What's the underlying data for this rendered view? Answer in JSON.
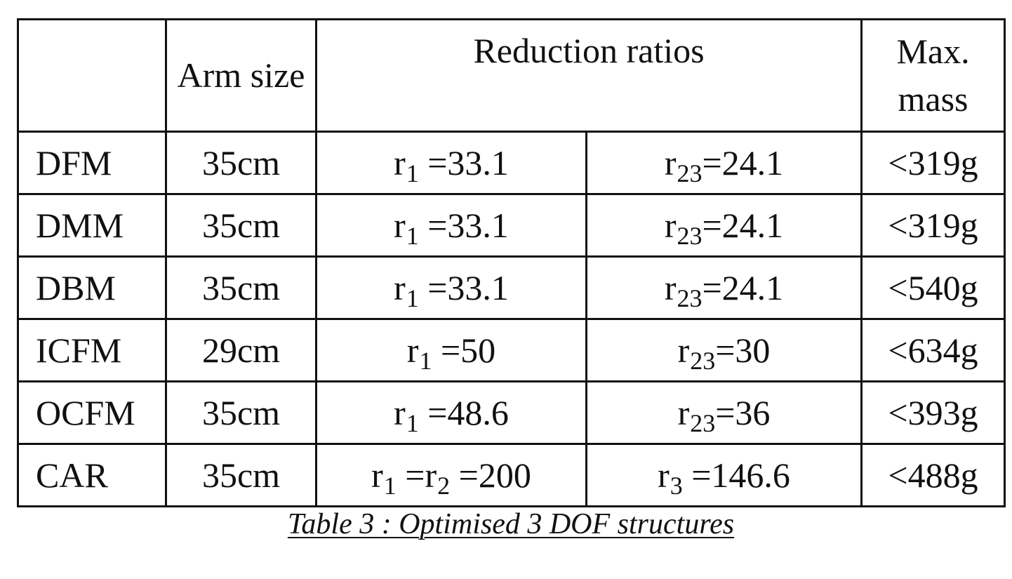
{
  "table": {
    "headers": {
      "name": "",
      "arm_size": "Arm size",
      "reduction_ratios": "Reduction ratios",
      "max_mass": "Max. mass"
    },
    "rows": [
      {
        "name": "DFM",
        "arm_size": "35cm",
        "ratio_a": {
          "symbol": "r",
          "sub": "1",
          "value": " =33.1"
        },
        "ratio_b": {
          "symbol": "r",
          "sub": "23",
          "value": "=24.1"
        },
        "max_mass": "<319g"
      },
      {
        "name": "DMM",
        "arm_size": "35cm",
        "ratio_a": {
          "symbol": "r",
          "sub": "1",
          "value": " =33.1"
        },
        "ratio_b": {
          "symbol": "r",
          "sub": "23",
          "value": "=24.1"
        },
        "max_mass": "<319g"
      },
      {
        "name": "DBM",
        "arm_size": "35cm",
        "ratio_a": {
          "symbol": "r",
          "sub": "1",
          "value": " =33.1"
        },
        "ratio_b": {
          "symbol": "r",
          "sub": "23",
          "value": "=24.1"
        },
        "max_mass": "<540g"
      },
      {
        "name": "ICFM",
        "arm_size": "29cm",
        "ratio_a": {
          "symbol": "r",
          "sub": "1",
          "value": " =50"
        },
        "ratio_b": {
          "symbol": "r",
          "sub": "23",
          "value": "=30"
        },
        "max_mass": "<634g"
      },
      {
        "name": "OCFM",
        "arm_size": "35cm",
        "ratio_a": {
          "symbol": "r",
          "sub": "1",
          "value": " =48.6"
        },
        "ratio_b": {
          "symbol": "r",
          "sub": "23",
          "value": "=36"
        },
        "max_mass": "<393g"
      },
      {
        "name": "CAR",
        "arm_size": "35cm",
        "ratio_a": {
          "symbol": "r",
          "sub": "1",
          "value": " =r",
          "sub2": "2",
          "value2": " =200"
        },
        "ratio_b": {
          "symbol": "r",
          "sub": "3",
          "value": " =146.6"
        },
        "max_mass": "<488g"
      }
    ]
  },
  "caption": "Table 3 : Optimised 3 DOF structures"
}
